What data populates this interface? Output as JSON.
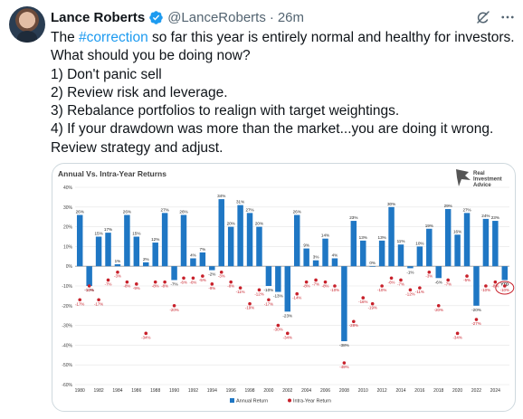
{
  "tweet": {
    "author_name": "Lance Roberts",
    "handle": "@LanceRoberts",
    "separator": "·",
    "time": "26m",
    "text_before_hashtag": "The ",
    "hashtag": "#correction",
    "text_after_hashtag": " so far this year is entirely normal and healthy for investors.",
    "lines": [
      "What should you be doing now?",
      "1) Don't panic sell",
      "2) Review risk and leverage.",
      "3) Rebalance portfolios to realign with target weightings.",
      "4) If your drawdown was more than the market...you are doing it wrong.",
      "Review strategy and adjust."
    ]
  },
  "icons": {
    "verified": "verified-badge-icon",
    "grok": "grok-icon",
    "more": "more-icon",
    "logo": "eagle-logo-icon"
  },
  "colors": {
    "accent": "#1d9bf0",
    "bar": "#1f77c4",
    "drawdown": "#c8202a"
  },
  "chart_data": {
    "type": "bar",
    "title": "Annual Vs. Intra-Year Returns",
    "brand": [
      "Real",
      "Investment",
      "Advice"
    ],
    "ylim": [
      -60,
      40
    ],
    "yticks": [
      "40%",
      "30%",
      "20%",
      "10%",
      "0%",
      "-10%",
      "-20%",
      "-30%",
      "-40%",
      "-50%",
      "-60%"
    ],
    "categories": [
      "1980",
      "1981",
      "1982",
      "1983",
      "1984",
      "1985",
      "1986",
      "1987",
      "1988",
      "1989",
      "1990",
      "1991",
      "1992",
      "1993",
      "1994",
      "1995",
      "1996",
      "1997",
      "1998",
      "1999",
      "2000",
      "2001",
      "2002",
      "2003",
      "2004",
      "2005",
      "2006",
      "2007",
      "2008",
      "2009",
      "2010",
      "2011",
      "2012",
      "2013",
      "2014",
      "2015",
      "2016",
      "2017",
      "2018",
      "2019",
      "2020",
      "2021",
      "2022",
      "2023",
      "2024",
      "YTD"
    ],
    "xtick_labels": [
      "1980",
      "1982",
      "1984",
      "1986",
      "1988",
      "1990",
      "1992",
      "1994",
      "1996",
      "1998",
      "2000",
      "2002",
      "2004",
      "2006",
      "2008",
      "2010",
      "2012",
      "2014",
      "2016",
      "2018",
      "2020",
      "2022",
      "2024"
    ],
    "series": [
      {
        "name": "Annual Return",
        "values": [
          26,
          -10,
          15,
          17,
          1,
          26,
          15,
          2,
          12,
          27,
          -7,
          26,
          4,
          7,
          -2,
          34,
          20,
          31,
          27,
          20,
          -10,
          -13,
          -23,
          26,
          9,
          3,
          14,
          4,
          -38,
          23,
          13,
          0,
          13,
          30,
          11,
          -1,
          10,
          19,
          -6,
          29,
          16,
          27,
          -20,
          24,
          23,
          -7
        ],
        "labels": [
          "26%",
          "-10%",
          "15%",
          "17%",
          "1%",
          "26%",
          "15%",
          "2%",
          "12%",
          "27%",
          "-7%",
          "26%",
          "4%",
          "7%",
          "-2%",
          "34%",
          "20%",
          "31%",
          "27%",
          "20%",
          "-10%",
          "-13%",
          "-23%",
          "26%",
          "9%",
          "3%",
          "14%",
          "4%",
          "-38%",
          "23%",
          "13%",
          "0%",
          "13%",
          "30%",
          "11%",
          "-1%",
          "10%",
          "19%",
          "-6%",
          "29%",
          "16%",
          "27%",
          "-20%",
          "24%",
          "23%",
          "YTD"
        ]
      },
      {
        "name": "Intra-Year Return",
        "values": [
          -17,
          -10,
          -17,
          -7,
          -3,
          -8,
          -9,
          -34,
          -8,
          -8,
          -20,
          -6,
          -6,
          -5,
          -9,
          -3,
          -8,
          -11,
          -19,
          -12,
          -17,
          -30,
          -34,
          -14,
          -8,
          -7,
          -8,
          -10,
          -49,
          -28,
          -16,
          -19,
          -10,
          -6,
          -7,
          -12,
          -11,
          -3,
          -20,
          -7,
          -34,
          -5,
          -27,
          -10,
          -8,
          -10
        ],
        "labels": [
          "-17%",
          "-10%",
          "-17%",
          "-7%",
          "-3%",
          "-8%",
          "-9%",
          "-34%",
          "-8%",
          "-8%",
          "-20%",
          "-6%",
          "-6%",
          "-5%",
          "-9%",
          "-3%",
          "-8%",
          "-11%",
          "-19%",
          "-12%",
          "-17%",
          "-30%",
          "-34%",
          "-14%",
          "-8%",
          "-7%",
          "-8%",
          "-10%",
          "-49%",
          "-28%",
          "-16%",
          "-19%",
          "-10%",
          "-6%",
          "-7%",
          "-12%",
          "-11%",
          "-3%",
          "-20%",
          "-7%",
          "-34%",
          "-5%",
          "-27%",
          "-10%",
          "-8%",
          "-10%"
        ]
      }
    ],
    "highlight": "YTD",
    "legend_position": "bottom",
    "grid": true
  }
}
